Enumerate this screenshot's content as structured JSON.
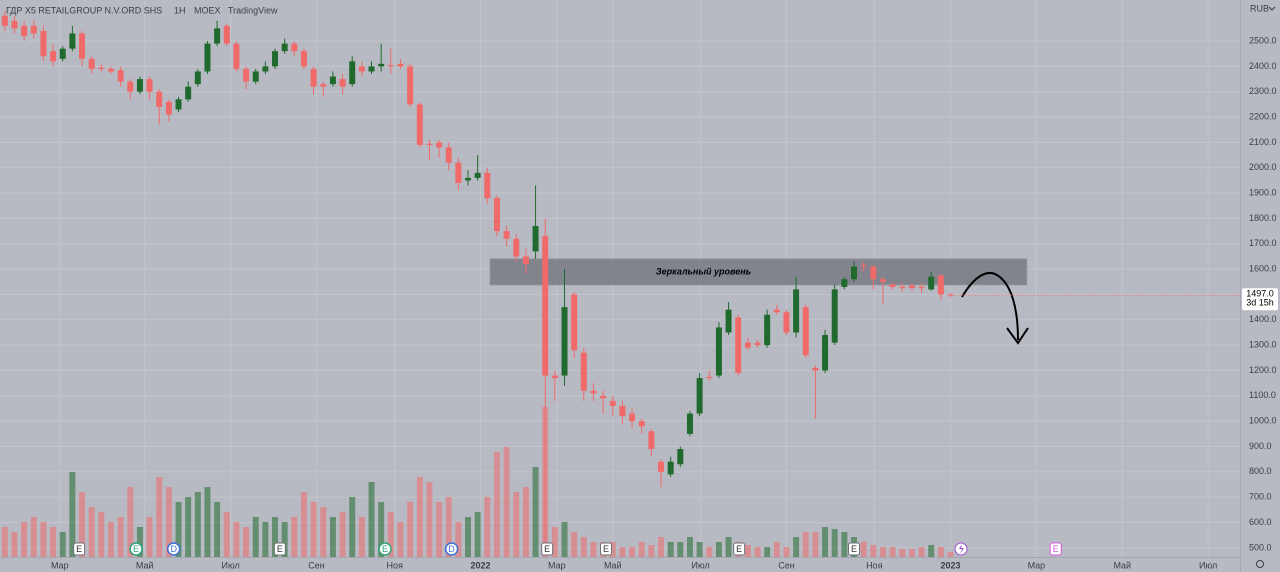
{
  "chart_data": {
    "type": "candlestick",
    "title": "ГДР X5 RETAILGROUP N.V.ORD SHS",
    "interval": "1Н",
    "exchange": "MOEX",
    "source": "TradingView",
    "currency": "RUB",
    "up_color": "#1f6a2c",
    "down_color": "#f06a6a",
    "grid": true,
    "xlim": [
      -0.5,
      128
    ],
    "xticks": [
      {
        "value": 5.7,
        "label": "Мар"
      },
      {
        "value": 14.5,
        "label": "Май"
      },
      {
        "value": 23.4,
        "label": "Июл"
      },
      {
        "value": 32.3,
        "label": "Сен"
      },
      {
        "value": 40.4,
        "label": "Ноя"
      },
      {
        "value": 49.3,
        "label": "2022"
      },
      {
        "value": 57.2,
        "label": "Мар"
      },
      {
        "value": 63.0,
        "label": "Май"
      },
      {
        "value": 72.1,
        "label": "Июл"
      },
      {
        "value": 81.0,
        "label": "Сен"
      },
      {
        "value": 90.1,
        "label": "Ноя"
      },
      {
        "value": 98.0,
        "label": "2023"
      },
      {
        "value": 106.9,
        "label": "Мар"
      },
      {
        "value": 115.8,
        "label": "Май"
      },
      {
        "value": 124.7,
        "label": "Июл"
      }
    ],
    "ylim": [
      464,
      2662
    ],
    "yticks": [
      {
        "value": 500,
        "label": "500.0"
      },
      {
        "value": 600,
        "label": "600.0"
      },
      {
        "value": 700,
        "label": "700.0"
      },
      {
        "value": 800,
        "label": "800.0"
      },
      {
        "value": 900,
        "label": "900.0"
      },
      {
        "value": 1000,
        "label": "1000.0"
      },
      {
        "value": 1100,
        "label": "1100.0"
      },
      {
        "value": 1200,
        "label": "1200.0"
      },
      {
        "value": 1300,
        "label": "1300.0"
      },
      {
        "value": 1400,
        "label": "1400.0"
      },
      {
        "value": 1500,
        "label": "1500.0"
      },
      {
        "value": 1600,
        "label": "1600.0"
      },
      {
        "value": 1700,
        "label": "1700.0"
      },
      {
        "value": 1800,
        "label": "1800.0"
      },
      {
        "value": 1900,
        "label": "1900.0"
      },
      {
        "value": 2000,
        "label": "2000.0"
      },
      {
        "value": 2100,
        "label": "2100.0"
      },
      {
        "value": 2200,
        "label": "2200.0"
      },
      {
        "value": 2300,
        "label": "2300.0"
      },
      {
        "value": 2400,
        "label": "2400.0"
      },
      {
        "value": 2500,
        "label": "2500.0"
      }
    ],
    "open": [
      2600,
      2580,
      2560,
      2560,
      2540,
      2460,
      2430,
      2470,
      2530,
      2430,
      2395,
      2390,
      2385,
      2340,
      2300,
      2350,
      2300,
      2260,
      2230,
      2270,
      2330,
      2380,
      2490,
      2560,
      2490,
      2390,
      2340,
      2380,
      2400,
      2460,
      2490,
      2460,
      2390,
      2330,
      2330,
      2350,
      2330,
      2400,
      2380,
      2400,
      2405,
      2410,
      2400,
      2250,
      2095,
      2100,
      2080,
      2020,
      1950,
      1960,
      1980,
      1880,
      1750,
      1720,
      1650,
      1670,
      1730,
      1180,
      1180,
      1500,
      1270,
      1120,
      1100,
      1080,
      1060,
      1030,
      1000,
      960,
      840,
      790,
      830,
      950,
      1030,
      1175,
      1180,
      1350,
      1410,
      1310,
      1310,
      1300,
      1440,
      1430,
      1350,
      1450,
      1210,
      1200,
      1310,
      1530,
      1560,
      1615,
      1610,
      1560,
      1540,
      1530,
      1535,
      1530,
      1520,
      1575,
      1500
    ],
    "high": [
      2620,
      2600,
      2580,
      2580,
      2560,
      2490,
      2480,
      2560,
      2540,
      2440,
      2410,
      2400,
      2400,
      2350,
      2360,
      2360,
      2310,
      2270,
      2280,
      2340,
      2390,
      2500,
      2580,
      2570,
      2500,
      2400,
      2390,
      2420,
      2470,
      2510,
      2500,
      2470,
      2400,
      2340,
      2380,
      2370,
      2440,
      2420,
      2420,
      2490,
      2470,
      2430,
      2410,
      2260,
      2110,
      2110,
      2100,
      2040,
      1990,
      2050,
      2000,
      1890,
      1770,
      1740,
      1680,
      1930,
      1800,
      1200,
      1600,
      1510,
      1290,
      1150,
      1120,
      1100,
      1080,
      1050,
      1010,
      970,
      850,
      860,
      900,
      1040,
      1190,
      1200,
      1390,
      1470,
      1420,
      1330,
      1320,
      1440,
      1460,
      1440,
      1570,
      1460,
      1220,
      1360,
      1540,
      1570,
      1630,
      1630,
      1615,
      1570,
      1550,
      1545,
      1545,
      1545,
      1590,
      1580,
      1505
    ],
    "low": [
      2540,
      2530,
      2500,
      2510,
      2420,
      2400,
      2420,
      2460,
      2400,
      2370,
      2380,
      2370,
      2320,
      2270,
      2290,
      2270,
      2170,
      2180,
      2220,
      2260,
      2320,
      2370,
      2480,
      2480,
      2380,
      2310,
      2330,
      2370,
      2390,
      2450,
      2440,
      2390,
      2290,
      2280,
      2320,
      2290,
      2320,
      2360,
      2370,
      2380,
      2370,
      2390,
      2240,
      2080,
      2030,
      2040,
      1990,
      1910,
      1930,
      1950,
      1860,
      1730,
      1690,
      1630,
      1580,
      1640,
      500,
      1080,
      1140,
      1250,
      1080,
      1080,
      1030,
      1020,
      990,
      970,
      950,
      860,
      740,
      780,
      820,
      940,
      1020,
      1160,
      1170,
      1340,
      1180,
      1280,
      1290,
      1290,
      1420,
      1340,
      1330,
      1250,
      1010,
      1190,
      1300,
      1520,
      1550,
      1590,
      1520,
      1460,
      1520,
      1510,
      1515,
      1505,
      1515,
      1480,
      1490
    ],
    "close": [
      2560,
      2550,
      2520,
      2530,
      2440,
      2420,
      2470,
      2530,
      2430,
      2390,
      2390,
      2380,
      2340,
      2300,
      2350,
      2300,
      2240,
      2210,
      2270,
      2320,
      2380,
      2490,
      2550,
      2490,
      2390,
      2340,
      2380,
      2400,
      2460,
      2490,
      2460,
      2400,
      2320,
      2320,
      2360,
      2320,
      2420,
      2380,
      2400,
      2410,
      2400,
      2400,
      2250,
      2090,
      2090,
      2080,
      2020,
      1940,
      1960,
      1980,
      1880,
      1750,
      1720,
      1650,
      1620,
      1770,
      1180,
      1170,
      1450,
      1280,
      1120,
      1110,
      1090,
      1060,
      1020,
      1000,
      980,
      890,
      800,
      840,
      890,
      1030,
      1170,
      1170,
      1370,
      1440,
      1190,
      1290,
      1300,
      1420,
      1430,
      1350,
      1520,
      1260,
      1200,
      1340,
      1520,
      1560,
      1610,
      1610,
      1560,
      1550,
      1530,
      1525,
      1525,
      1525,
      1570,
      1500,
      1497
    ],
    "volume": [
      30,
      25,
      35,
      40,
      35,
      30,
      25,
      85,
      65,
      50,
      45,
      35,
      40,
      70,
      30,
      40,
      80,
      70,
      55,
      60,
      65,
      70,
      55,
      45,
      35,
      30,
      40,
      35,
      40,
      35,
      40,
      65,
      55,
      50,
      40,
      45,
      60,
      40,
      75,
      55,
      45,
      35,
      55,
      80,
      75,
      55,
      60,
      35,
      40,
      45,
      60,
      105,
      110,
      65,
      70,
      90,
      150,
      30,
      35,
      25,
      20,
      15,
      15,
      15,
      10,
      10,
      15,
      12,
      20,
      15,
      15,
      20,
      15,
      10,
      15,
      20,
      15,
      12,
      10,
      10,
      15,
      10,
      20,
      25,
      25,
      30,
      28,
      25,
      20,
      15,
      12,
      10,
      10,
      8,
      8,
      10,
      12,
      10,
      5
    ],
    "volume_lim": [
      0,
      150
    ],
    "zone": {
      "label": "Зеркальный уровень",
      "ylim": [
        1538,
        1640
      ],
      "xlim": [
        50.3,
        105.9
      ]
    },
    "events": [
      {
        "x": 7.7,
        "label": "E",
        "color": "#ffffff"
      },
      {
        "x": 13.6,
        "label": "E",
        "color": "#2fa37a"
      },
      {
        "x": 17.5,
        "label": "D",
        "color": "#3d6fd8"
      },
      {
        "x": 28.5,
        "label": "E",
        "color": "#ffffff"
      },
      {
        "x": 39.4,
        "label": "E",
        "color": "#2fa37a"
      },
      {
        "x": 46.3,
        "label": "D",
        "color": "#3d6fd8"
      },
      {
        "x": 56.2,
        "label": "E",
        "color": "#ffffff"
      },
      {
        "x": 62.3,
        "label": "E",
        "color": "#ffffff"
      },
      {
        "x": 76.1,
        "label": "E",
        "color": "#ffffff"
      },
      {
        "x": 88.0,
        "label": "E",
        "color": "#ffffff"
      },
      {
        "x": 108.9,
        "label": "E",
        "color": "#d65bd6"
      }
    ],
    "last_price": {
      "value": 1497,
      "label": "1497.0"
    },
    "countdown": "3d 15h"
  }
}
